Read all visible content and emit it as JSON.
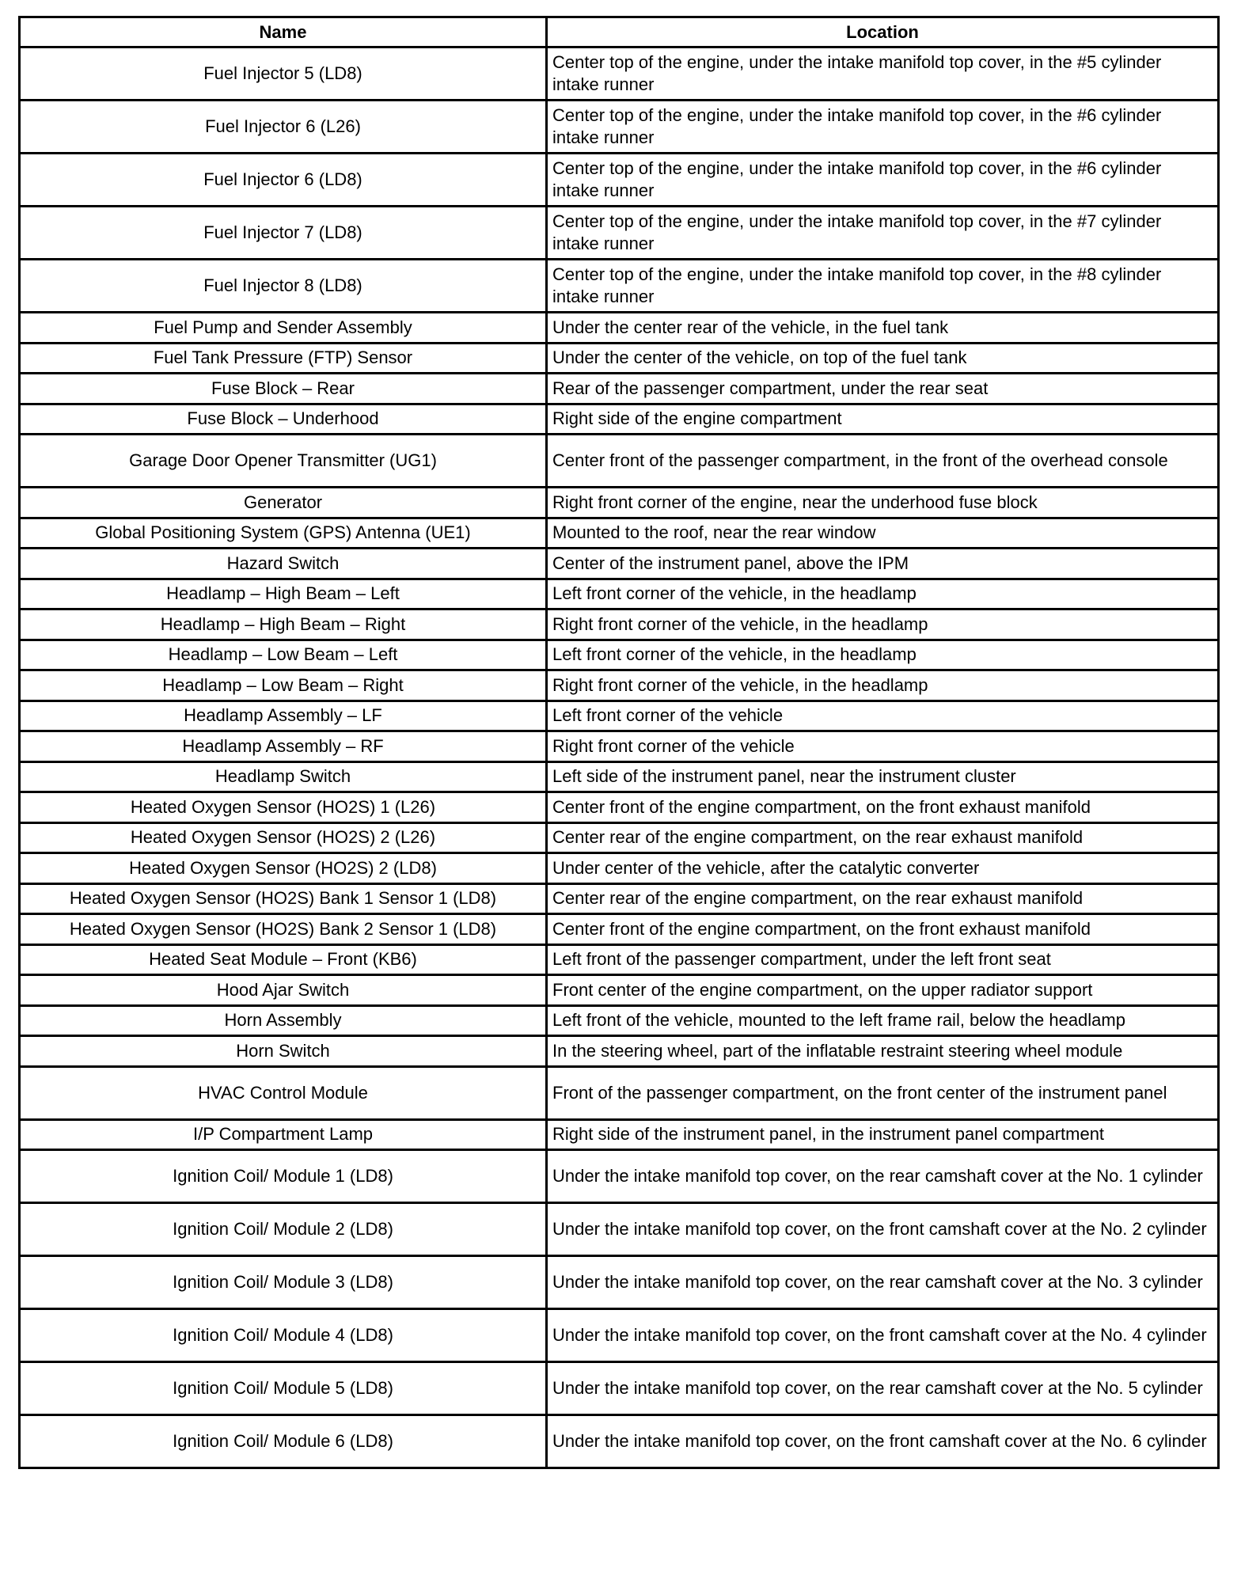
{
  "headers": {
    "name": "Name",
    "location": "Location"
  },
  "rows": [
    {
      "name": "Fuel Injector 5 (LD8)",
      "location": "Center top of the engine, under the intake manifold top cover, in the #5 cylinder intake runner"
    },
    {
      "name": "Fuel Injector 6 (L26)",
      "location": "Center top of the engine, under the intake manifold top cover, in the #6 cylinder intake runner"
    },
    {
      "name": "Fuel Injector 6 (LD8)",
      "location": "Center top of the engine, under the intake manifold top cover, in the #6 cylinder intake runner"
    },
    {
      "name": "Fuel Injector 7 (LD8)",
      "location": "Center top of the engine, under the intake manifold top cover, in the #7 cylinder intake runner"
    },
    {
      "name": "Fuel Injector 8 (LD8)",
      "location": "Center top of the engine, under the intake manifold top cover, in the #8 cylinder intake runner"
    },
    {
      "name": "Fuel Pump and Sender Assembly",
      "location": "Under the center rear of the vehicle, in the fuel tank"
    },
    {
      "name": "Fuel Tank Pressure (FTP) Sensor",
      "location": "Under the center of the vehicle, on top of the fuel tank"
    },
    {
      "name": "Fuse Block – Rear",
      "location": "Rear of the passenger compartment, under the rear seat"
    },
    {
      "name": "Fuse Block – Underhood",
      "location": "Right side of the engine compartment"
    },
    {
      "name": "Garage Door Opener Transmitter (UG1)",
      "location": "Center front of the passenger compartment, in the front of the overhead console"
    },
    {
      "name": "Generator",
      "location": "Right front corner of the engine, near the underhood fuse block"
    },
    {
      "name": "Global Positioning System (GPS) Antenna (UE1)",
      "location": "Mounted to the roof, near the rear window"
    },
    {
      "name": "Hazard Switch",
      "location": "Center of the instrument panel, above the IPM"
    },
    {
      "name": "Headlamp – High Beam – Left",
      "location": "Left front corner of the vehicle, in the headlamp"
    },
    {
      "name": "Headlamp – High Beam – Right",
      "location": "Right front corner of the vehicle, in the headlamp"
    },
    {
      "name": "Headlamp – Low Beam – Left",
      "location": "Left front corner of the vehicle, in the headlamp"
    },
    {
      "name": "Headlamp – Low Beam – Right",
      "location": "Right front corner of the vehicle, in the headlamp"
    },
    {
      "name": "Headlamp Assembly – LF",
      "location": "Left front corner of the vehicle"
    },
    {
      "name": "Headlamp Assembly – RF",
      "location": "Right front corner of the vehicle"
    },
    {
      "name": "Headlamp Switch",
      "location": "Left side of the instrument panel, near the instrument cluster"
    },
    {
      "name": "Heated Oxygen Sensor (HO2S) 1 (L26)",
      "location": "Center front of the engine compartment, on the front exhaust manifold"
    },
    {
      "name": "Heated Oxygen Sensor (HO2S) 2 (L26)",
      "location": "Center rear of the engine compartment, on the rear exhaust manifold"
    },
    {
      "name": "Heated Oxygen Sensor (HO2S) 2 (LD8)",
      "location": "Under center of the vehicle, after the catalytic converter"
    },
    {
      "name": "Heated Oxygen Sensor (HO2S) Bank 1 Sensor 1 (LD8)",
      "location": "Center rear of the engine compartment, on the rear exhaust manifold"
    },
    {
      "name": "Heated Oxygen Sensor (HO2S) Bank 2 Sensor 1 (LD8)",
      "location": "Center front of the engine compartment, on the front exhaust manifold"
    },
    {
      "name": "Heated Seat Module – Front (KB6)",
      "location": "Left front of the passenger compartment, under the left front seat"
    },
    {
      "name": "Hood Ajar Switch",
      "location": "Front center of the engine compartment, on the upper radiator support"
    },
    {
      "name": "Horn Assembly",
      "location": "Left front of the vehicle, mounted to the left frame rail, below the headlamp"
    },
    {
      "name": "Horn Switch",
      "location": "In the steering wheel, part of the inflatable restraint steering wheel module"
    },
    {
      "name": "HVAC Control Module",
      "location": "Front of the passenger compartment, on the front center of the instrument panel"
    },
    {
      "name": "I/P Compartment Lamp",
      "location": "Right side of the instrument panel, in the instrument panel compartment"
    },
    {
      "name": "Ignition Coil/ Module 1 (LD8)",
      "location": "Under the intake manifold top cover, on the rear camshaft cover at the No. 1 cylinder"
    },
    {
      "name": "Ignition Coil/ Module 2 (LD8)",
      "location": "Under the intake manifold top cover, on the front camshaft cover at the No. 2 cylinder"
    },
    {
      "name": "Ignition Coil/ Module 3 (LD8)",
      "location": "Under the intake manifold top cover, on the rear camshaft cover at the No. 3 cylinder"
    },
    {
      "name": "Ignition Coil/ Module 4 (LD8)",
      "location": "Under the intake manifold top cover, on the front camshaft cover at the No. 4 cylinder"
    },
    {
      "name": "Ignition Coil/ Module 5 (LD8)",
      "location": "Under the intake manifold top cover, on the rear camshaft cover at the No. 5 cylinder"
    },
    {
      "name": "Ignition Coil/ Module 6 (LD8)",
      "location": "Under the intake manifold top cover, on the front camshaft cover at the No. 6 cylinder"
    }
  ]
}
